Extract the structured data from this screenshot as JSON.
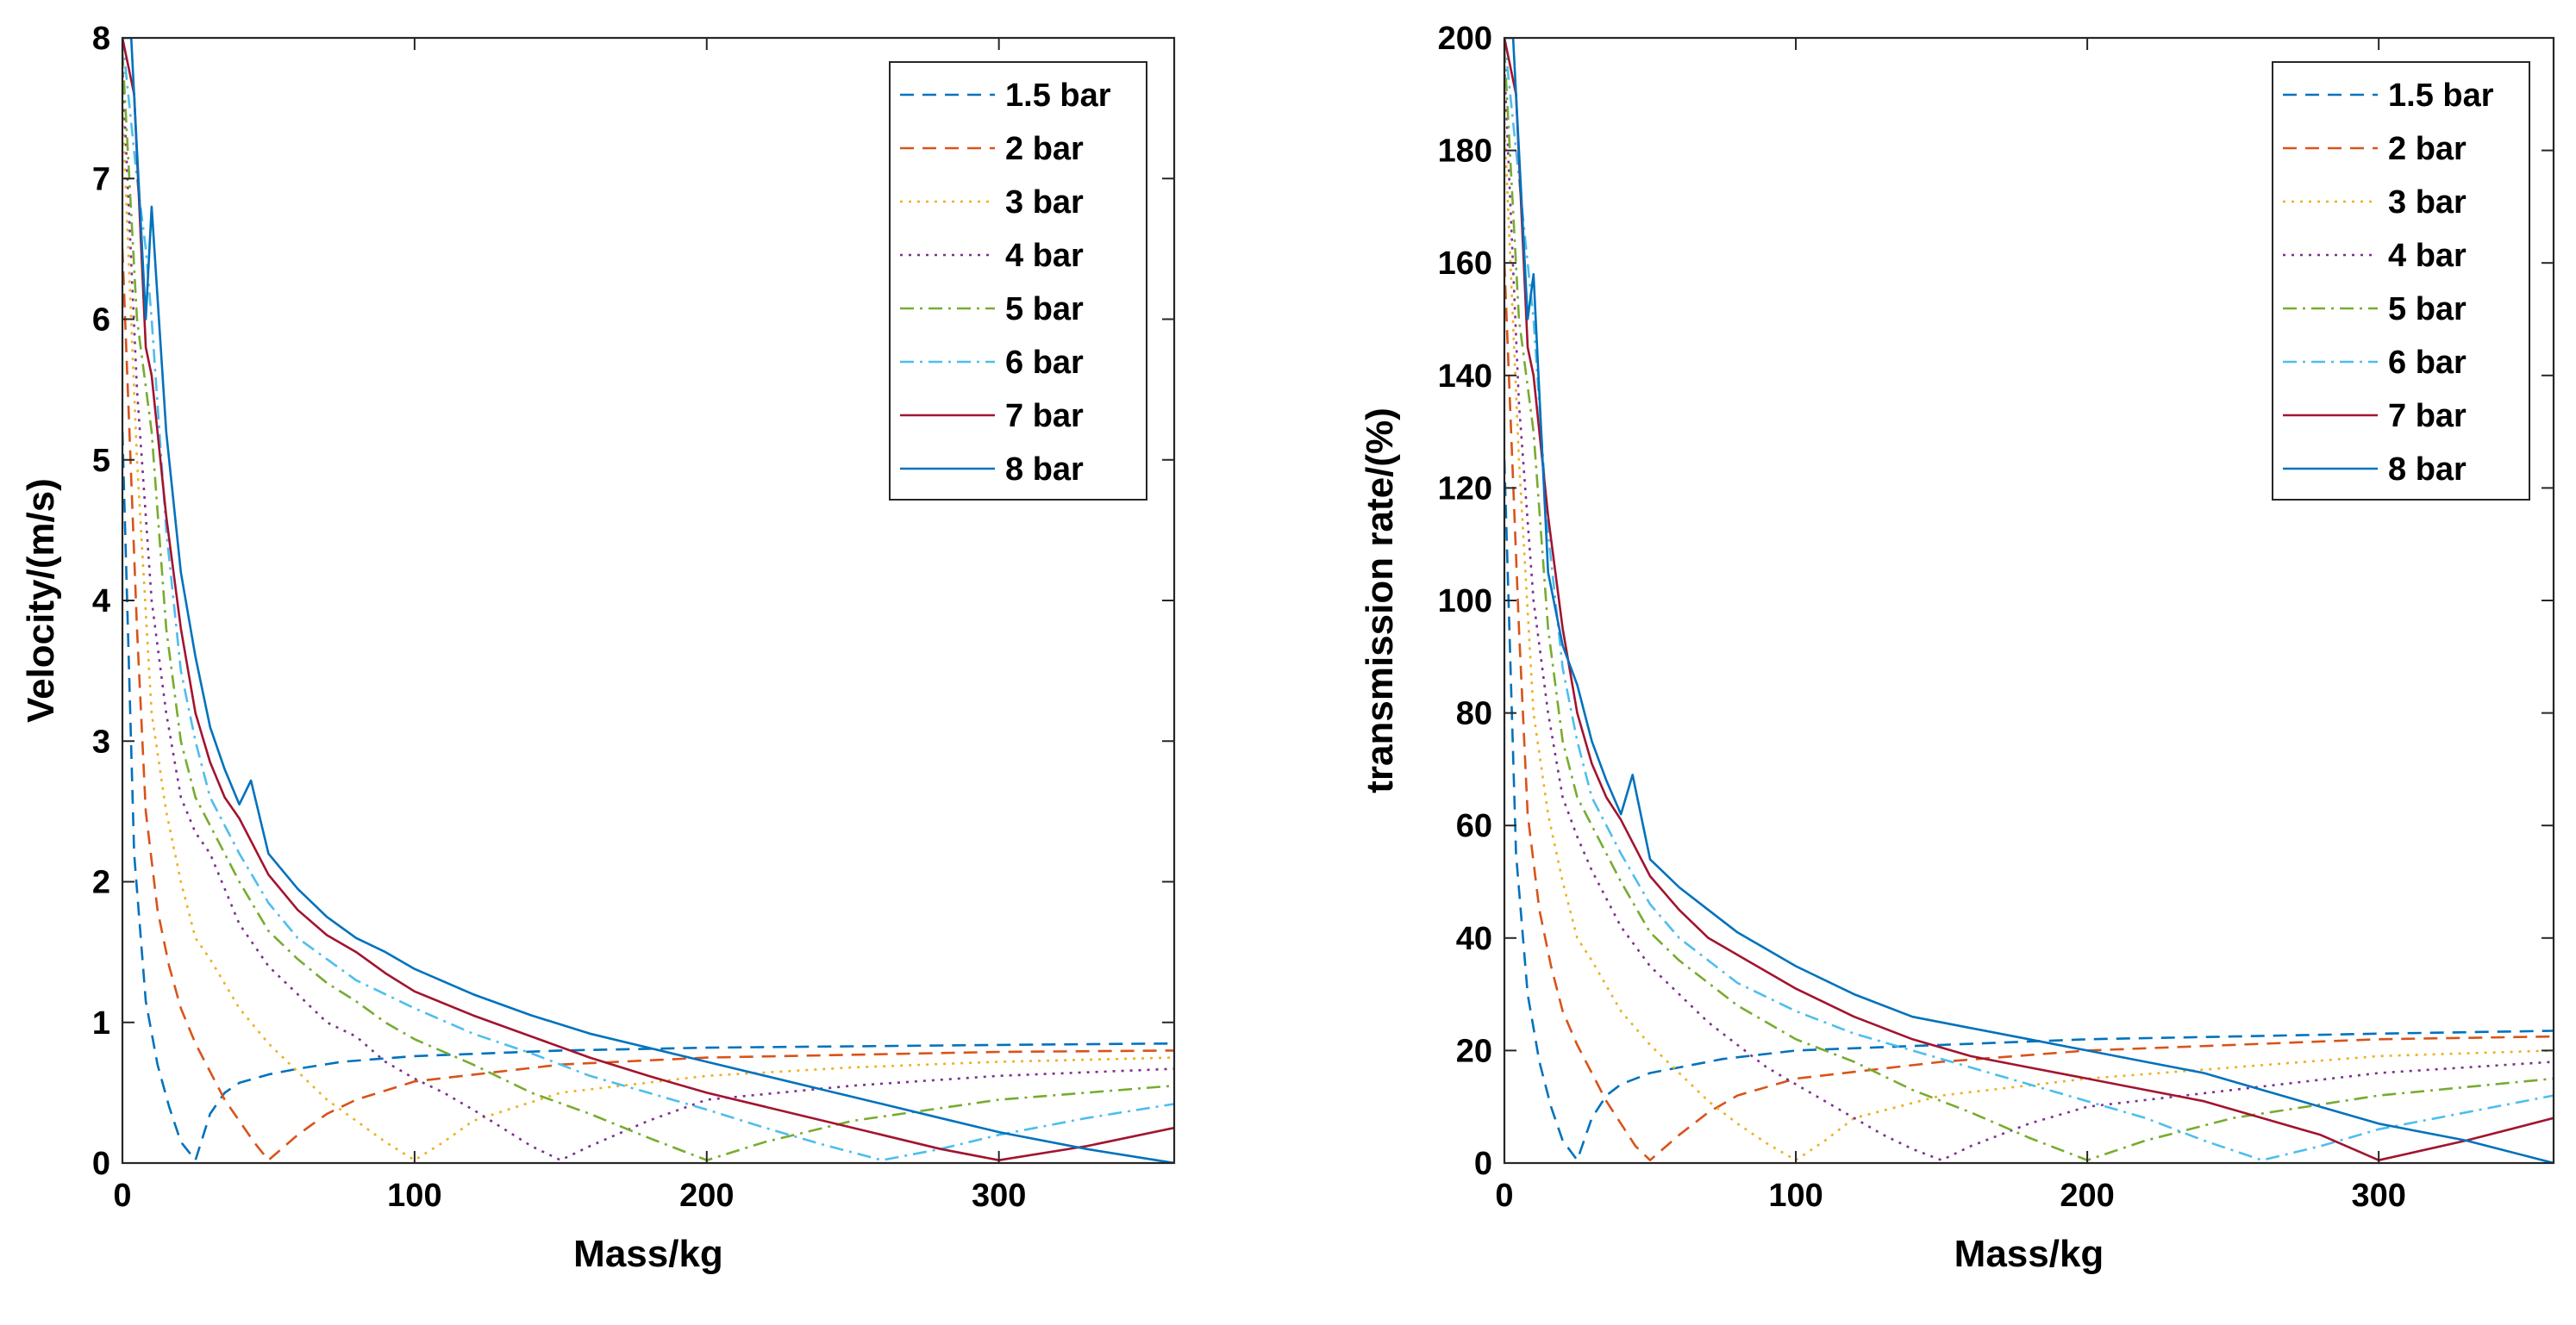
{
  "chart_data": [
    {
      "type": "line",
      "xlabel": "Mass/kg",
      "ylabel": "Velocity/(m/s)",
      "xlim": [
        0,
        360
      ],
      "ylim": [
        0,
        8
      ],
      "xticks": [
        0,
        100,
        200,
        300
      ],
      "yticks": [
        0,
        1,
        2,
        3,
        4,
        5,
        6,
        7,
        8
      ],
      "xtick_labels": [
        "0",
        "100",
        "200",
        "300"
      ],
      "ytick_labels": [
        "0",
        "1",
        "2",
        "3",
        "4",
        "5",
        "6",
        "7",
        "8"
      ],
      "grid": false,
      "legend_position": "top-right",
      "series": [
        {
          "name": "1.5 bar",
          "color": "#0072BD",
          "style": "dashed",
          "x": [
            0,
            4,
            8,
            12,
            16,
            20,
            25,
            30,
            35,
            40,
            50,
            60,
            75,
            100,
            150,
            200,
            250,
            300,
            360
          ],
          "y": [
            5.2,
            2.2,
            1.15,
            0.7,
            0.4,
            0.15,
            0.02,
            0.35,
            0.5,
            0.57,
            0.63,
            0.67,
            0.72,
            0.76,
            0.8,
            0.82,
            0.83,
            0.84,
            0.85
          ]
        },
        {
          "name": "2 bar",
          "color": "#D95319",
          "style": "dashed",
          "x": [
            0,
            5,
            8,
            12,
            16,
            20,
            25,
            30,
            35,
            40,
            45,
            50,
            60,
            70,
            80,
            100,
            150,
            200,
            250,
            300,
            360
          ],
          "y": [
            6.5,
            3.8,
            2.5,
            1.8,
            1.4,
            1.1,
            0.85,
            0.65,
            0.45,
            0.3,
            0.15,
            0.02,
            0.2,
            0.35,
            0.45,
            0.58,
            0.7,
            0.75,
            0.77,
            0.79,
            0.8
          ]
        },
        {
          "name": "3 bar",
          "color": "#EDB120",
          "style": "dotted",
          "x": [
            0,
            5,
            10,
            15,
            20,
            25,
            30,
            40,
            50,
            60,
            70,
            80,
            90,
            100,
            110,
            120,
            150,
            200,
            250,
            300,
            360
          ],
          "y": [
            7.5,
            5.0,
            3.2,
            2.5,
            2.0,
            1.6,
            1.45,
            1.1,
            0.85,
            0.65,
            0.45,
            0.3,
            0.15,
            0.02,
            0.15,
            0.3,
            0.5,
            0.62,
            0.68,
            0.72,
            0.75
          ]
        },
        {
          "name": "4 bar",
          "color": "#7E2F8E",
          "style": "dotted",
          "x": [
            0,
            5,
            10,
            15,
            20,
            25,
            30,
            40,
            50,
            60,
            70,
            80,
            90,
            100,
            110,
            120,
            130,
            140,
            150,
            160,
            180,
            200,
            250,
            300,
            360
          ],
          "y": [
            7.8,
            5.5,
            4.0,
            3.2,
            2.6,
            2.35,
            2.2,
            1.7,
            1.4,
            1.2,
            1.0,
            0.9,
            0.72,
            0.6,
            0.5,
            0.38,
            0.25,
            0.12,
            0.02,
            0.12,
            0.3,
            0.45,
            0.55,
            0.62,
            0.67
          ]
        },
        {
          "name": "5 bar",
          "color": "#77AC30",
          "style": "dashdot",
          "x": [
            0,
            5,
            10,
            15,
            20,
            25,
            30,
            40,
            50,
            60,
            70,
            80,
            90,
            100,
            120,
            140,
            160,
            180,
            200,
            220,
            250,
            300,
            360
          ],
          "y": [
            7.9,
            6.0,
            5.2,
            3.8,
            3.0,
            2.6,
            2.4,
            2.0,
            1.65,
            1.45,
            1.28,
            1.15,
            1.0,
            0.88,
            0.7,
            0.5,
            0.35,
            0.18,
            0.02,
            0.15,
            0.3,
            0.45,
            0.55
          ]
        },
        {
          "name": "6 bar",
          "color": "#4DBEEE",
          "style": "dashdot",
          "x": [
            0,
            5,
            8,
            10,
            15,
            20,
            25,
            30,
            40,
            50,
            60,
            70,
            80,
            100,
            120,
            140,
            160,
            180,
            200,
            220,
            240,
            260,
            280,
            300,
            330,
            360
          ],
          "y": [
            8.0,
            7.0,
            6.5,
            6.0,
            4.5,
            3.5,
            3.0,
            2.6,
            2.2,
            1.85,
            1.6,
            1.45,
            1.3,
            1.1,
            0.92,
            0.78,
            0.62,
            0.5,
            0.38,
            0.25,
            0.13,
            0.02,
            0.1,
            0.2,
            0.32,
            0.42
          ]
        },
        {
          "name": "7 bar",
          "color": "#A2142F",
          "style": "solid",
          "x": [
            0,
            4,
            8,
            10,
            15,
            20,
            25,
            30,
            35,
            40,
            50,
            60,
            70,
            80,
            90,
            100,
            120,
            140,
            160,
            180,
            200,
            220,
            240,
            260,
            280,
            300,
            330,
            360
          ],
          "y": [
            8.0,
            7.6,
            5.8,
            5.6,
            4.6,
            3.8,
            3.2,
            2.85,
            2.6,
            2.45,
            2.05,
            1.8,
            1.62,
            1.5,
            1.35,
            1.22,
            1.05,
            0.9,
            0.75,
            0.62,
            0.5,
            0.4,
            0.3,
            0.2,
            0.1,
            0.02,
            0.12,
            0.25
          ]
        },
        {
          "name": "8 bar",
          "color": "#0072BD",
          "style": "solid",
          "x": [
            0,
            3,
            5,
            8,
            10,
            15,
            20,
            25,
            30,
            35,
            40,
            44,
            50,
            60,
            70,
            80,
            90,
            100,
            120,
            140,
            160,
            180,
            200,
            220,
            240,
            260,
            280,
            300,
            330,
            360
          ],
          "y": [
            8.0,
            8.0,
            7.2,
            6.0,
            6.8,
            5.2,
            4.2,
            3.6,
            3.1,
            2.8,
            2.55,
            2.72,
            2.2,
            1.95,
            1.75,
            1.6,
            1.5,
            1.38,
            1.2,
            1.05,
            0.92,
            0.82,
            0.72,
            0.62,
            0.52,
            0.42,
            0.32,
            0.22,
            0.1,
            0.0
          ]
        }
      ]
    },
    {
      "type": "line",
      "xlabel": "Mass/kg",
      "ylabel": "transmission rate/(%)",
      "xlim": [
        0,
        360
      ],
      "ylim": [
        0,
        200
      ],
      "xticks": [
        0,
        100,
        200,
        300
      ],
      "yticks": [
        0,
        20,
        40,
        60,
        80,
        100,
        120,
        140,
        160,
        180,
        200
      ],
      "xtick_labels": [
        "0",
        "100",
        "200",
        "300"
      ],
      "ytick_labels": [
        "0",
        "20",
        "40",
        "60",
        "80",
        "100",
        "120",
        "140",
        "160",
        "180",
        "200"
      ],
      "grid": false,
      "legend_position": "top-right",
      "series": [
        {
          "name": "1.5 bar",
          "color": "#0072BD",
          "style": "dashed",
          "x": [
            0,
            4,
            8,
            12,
            16,
            20,
            25,
            30,
            35,
            40,
            50,
            60,
            75,
            100,
            150,
            200,
            250,
            300,
            360
          ],
          "y": [
            125,
            55,
            30,
            18,
            10,
            4,
            0.5,
            8,
            12,
            14,
            16,
            17,
            18.5,
            20,
            21,
            22,
            22.5,
            23,
            23.5
          ]
        },
        {
          "name": "2 bar",
          "color": "#D95319",
          "style": "dashed",
          "x": [
            0,
            5,
            8,
            12,
            16,
            20,
            25,
            30,
            35,
            40,
            45,
            50,
            60,
            70,
            80,
            100,
            150,
            200,
            250,
            300,
            360
          ],
          "y": [
            160,
            95,
            62,
            45,
            35,
            27,
            21,
            16,
            11,
            7,
            3,
            0.5,
            5,
            9,
            12,
            15,
            18,
            20,
            21,
            22,
            22.5
          ]
        },
        {
          "name": "3 bar",
          "color": "#EDB120",
          "style": "dotted",
          "x": [
            0,
            5,
            10,
            15,
            20,
            25,
            30,
            40,
            50,
            60,
            70,
            80,
            90,
            100,
            110,
            120,
            150,
            200,
            250,
            300,
            360
          ],
          "y": [
            185,
            125,
            80,
            62,
            50,
            40,
            36,
            27,
            21,
            16,
            11,
            7,
            3.5,
            0.5,
            4,
            8,
            12,
            15,
            17,
            19,
            20
          ]
        },
        {
          "name": "4 bar",
          "color": "#7E2F8E",
          "style": "dotted",
          "x": [
            0,
            5,
            10,
            15,
            20,
            25,
            30,
            40,
            50,
            60,
            70,
            80,
            90,
            100,
            110,
            120,
            130,
            140,
            150,
            160,
            180,
            200,
            250,
            300,
            360
          ],
          "y": [
            195,
            135,
            100,
            80,
            65,
            58,
            52,
            42,
            35,
            30,
            25,
            21,
            17,
            14,
            11,
            8,
            5,
            2.5,
            0.5,
            3,
            7,
            10,
            13,
            16,
            18
          ]
        },
        {
          "name": "5 bar",
          "color": "#77AC30",
          "style": "dashdot",
          "x": [
            0,
            5,
            10,
            15,
            20,
            25,
            30,
            40,
            50,
            60,
            70,
            80,
            90,
            100,
            120,
            140,
            160,
            180,
            200,
            220,
            250,
            300,
            360
          ],
          "y": [
            198,
            150,
            130,
            95,
            75,
            65,
            60,
            50,
            41,
            36,
            32,
            28,
            25,
            22,
            18,
            13,
            9,
            4.5,
            0.5,
            4,
            8,
            12,
            15
          ]
        },
        {
          "name": "6 bar",
          "color": "#4DBEEE",
          "style": "dashdot",
          "x": [
            0,
            5,
            8,
            10,
            15,
            20,
            25,
            30,
            40,
            50,
            60,
            70,
            80,
            100,
            120,
            140,
            160,
            180,
            200,
            220,
            240,
            260,
            280,
            300,
            330,
            360
          ],
          "y": [
            200,
            175,
            160,
            150,
            112,
            88,
            75,
            65,
            55,
            46,
            40,
            36,
            32,
            27,
            23,
            20,
            17,
            14,
            11,
            8,
            4,
            0.5,
            3,
            6,
            9,
            12
          ]
        },
        {
          "name": "7 bar",
          "color": "#A2142F",
          "style": "solid",
          "x": [
            0,
            4,
            8,
            10,
            15,
            20,
            25,
            30,
            35,
            40,
            50,
            60,
            70,
            80,
            90,
            100,
            120,
            140,
            160,
            180,
            200,
            220,
            240,
            260,
            280,
            300,
            330,
            360
          ],
          "y": [
            200,
            190,
            145,
            140,
            115,
            95,
            80,
            71,
            65,
            61,
            51,
            45,
            40,
            37,
            34,
            31,
            26,
            22,
            19,
            17,
            15,
            13,
            11,
            8,
            5,
            0.5,
            4,
            8
          ]
        },
        {
          "name": "8 bar",
          "color": "#0072BD",
          "style": "solid",
          "x": [
            0,
            3,
            5,
            8,
            10,
            15,
            20,
            25,
            30,
            35,
            40,
            44,
            50,
            60,
            70,
            80,
            90,
            100,
            120,
            140,
            160,
            180,
            200,
            220,
            240,
            260,
            280,
            300,
            330,
            360
          ],
          "y": [
            200,
            200,
            180,
            150,
            158,
            105,
            92,
            85,
            75,
            68,
            62,
            69,
            54,
            49,
            45,
            41,
            38,
            35,
            30,
            26,
            24,
            22,
            20,
            18,
            16,
            13,
            10,
            7,
            4,
            0
          ]
        }
      ]
    }
  ]
}
